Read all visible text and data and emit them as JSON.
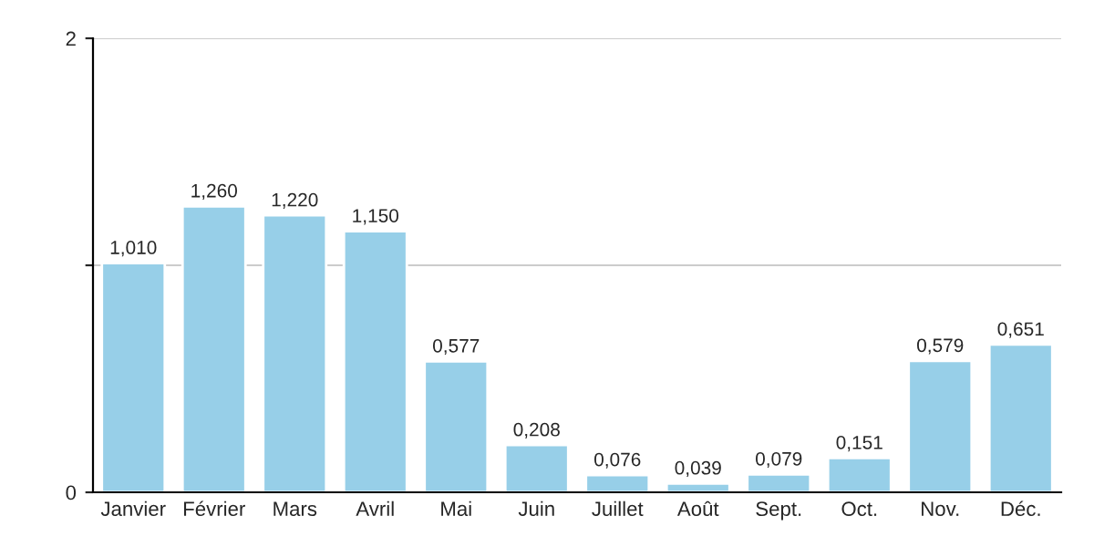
{
  "chart_data": {
    "type": "bar",
    "categories": [
      "Janvier",
      "Février",
      "Mars",
      "Avril",
      "Mai",
      "Juin",
      "Juillet",
      "Août",
      "Sept.",
      "Oct.",
      "Nov.",
      "Déc."
    ],
    "values": [
      1.01,
      1.26,
      1.22,
      1.15,
      0.577,
      0.208,
      0.076,
      0.039,
      0.079,
      0.151,
      0.579,
      0.651
    ],
    "value_labels": [
      "1,010",
      "1,260",
      "1,220",
      "1,150",
      "0,577",
      "0,208",
      "0,076",
      "0,039",
      "0,079",
      "0,151",
      "0,579",
      "0,651"
    ],
    "color": "#97cfe8",
    "ylim": [
      0,
      2
    ],
    "yticks": [
      0,
      {
        "value": 1,
        "label": null
      },
      2
    ],
    "grid": "y"
  }
}
